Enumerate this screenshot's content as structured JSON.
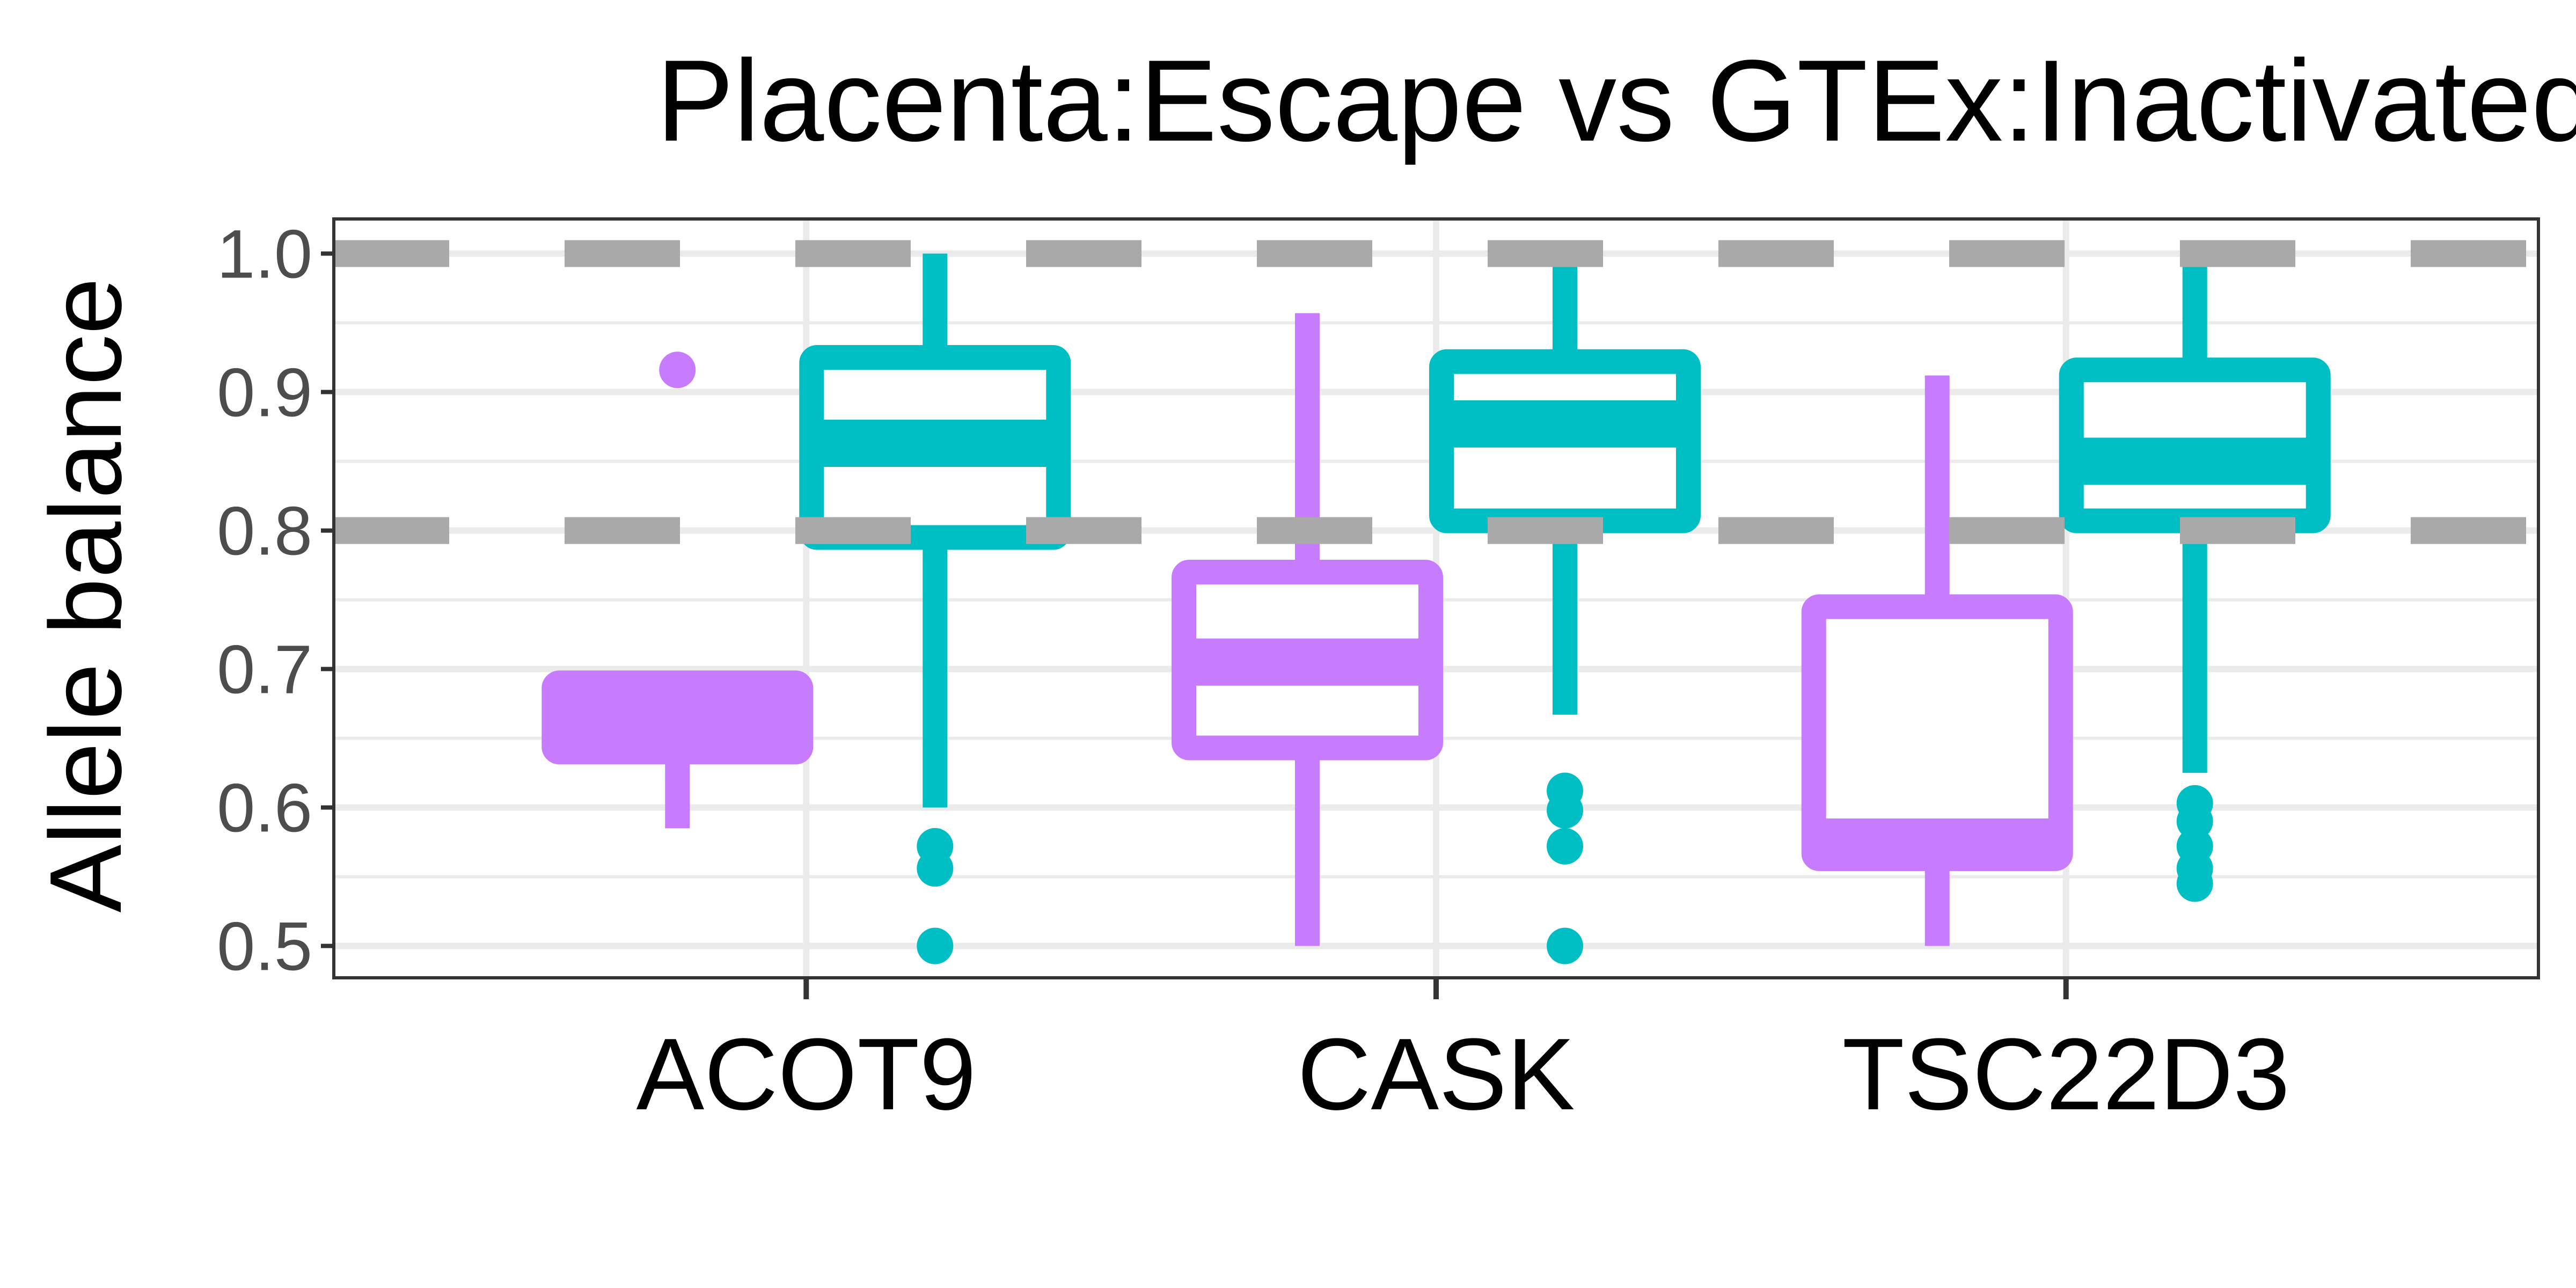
{
  "chart_data": {
    "type": "box",
    "title": "Placenta:Escape vs GTEx:Inactivated",
    "xlabel": "",
    "ylabel": "Allele balance",
    "categories": [
      "ACOT9",
      "CASK",
      "TSC22D3"
    ],
    "ylim": [
      0.477,
      1.025
    ],
    "yticks": [
      0.5,
      0.6,
      0.7,
      0.8,
      0.9,
      1.0
    ],
    "ytick_labels": [
      "0.5",
      "0.6",
      "0.7",
      "0.8",
      "0.9",
      "1.0"
    ],
    "reference_lines": [
      0.8,
      1.0
    ],
    "grid": true,
    "legend": "none",
    "series": [
      {
        "color": "#C77CFF",
        "boxes": [
          {
            "category": "ACOT9",
            "lower_whisker": 0.585,
            "q1": 0.64,
            "median": 0.665,
            "q3": 0.69,
            "upper_whisker": 0.69,
            "outliers": [
              0.916
            ]
          },
          {
            "category": "CASK",
            "lower_whisker": 0.5,
            "q1": 0.643,
            "median": 0.705,
            "q3": 0.77,
            "upper_whisker": 0.957,
            "outliers": []
          },
          {
            "category": "TSC22D3",
            "lower_whisker": 0.5,
            "q1": 0.563,
            "median": 0.575,
            "q3": 0.745,
            "upper_whisker": 0.912,
            "outliers": []
          }
        ]
      },
      {
        "color": "#00BFC4",
        "boxes": [
          {
            "category": "ACOT9",
            "lower_whisker": 0.6,
            "q1": 0.795,
            "median": 0.863,
            "q3": 0.925,
            "upper_whisker": 1.0,
            "outliers": [
              0.572,
              0.556,
              0.5
            ]
          },
          {
            "category": "CASK",
            "lower_whisker": 0.667,
            "q1": 0.807,
            "median": 0.877,
            "q3": 0.922,
            "upper_whisker": 1.0,
            "outliers": [
              0.612,
              0.598,
              0.572,
              0.5
            ]
          },
          {
            "category": "TSC22D3",
            "lower_whisker": 0.625,
            "q1": 0.807,
            "median": 0.85,
            "q3": 0.916,
            "upper_whisker": 1.0,
            "outliers": [
              0.603,
              0.59,
              0.572,
              0.556,
              0.545
            ]
          }
        ]
      }
    ]
  }
}
